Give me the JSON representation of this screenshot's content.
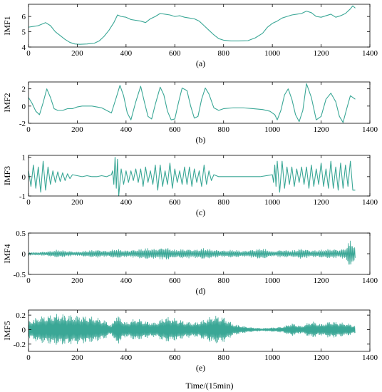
{
  "figure": {
    "xlabel": "Time/(15min)",
    "series_color": "#3aa796"
  },
  "chart_data": [
    {
      "type": "line",
      "ylabel": "IMF1",
      "caption": "(a)",
      "xlim": [
        0,
        1400
      ],
      "ylim": [
        4,
        6.8
      ],
      "xticks": [
        0,
        200,
        400,
        600,
        800,
        1000,
        1200,
        1400
      ],
      "yticks": [
        4,
        5,
        6
      ],
      "series": [
        {
          "x": [
            0,
            20,
            40,
            55,
            70,
            90,
            110,
            130,
            150,
            170,
            190,
            210,
            240,
            270,
            290,
            310,
            330,
            350,
            365,
            380,
            400,
            420,
            440,
            460,
            480,
            500,
            520,
            540,
            560,
            580,
            600,
            620,
            640,
            660,
            680,
            700,
            720,
            740,
            760,
            780,
            800,
            830,
            860,
            900,
            930,
            960,
            980,
            1000,
            1020,
            1040,
            1060,
            1080,
            1100,
            1120,
            1140,
            1160,
            1180,
            1200,
            1220,
            1240,
            1260,
            1280,
            1300,
            1320,
            1330,
            1340
          ],
          "y": [
            5.3,
            5.35,
            5.4,
            5.5,
            5.6,
            5.4,
            5.0,
            4.75,
            4.5,
            4.3,
            4.2,
            4.18,
            4.2,
            4.25,
            4.4,
            4.7,
            5.1,
            5.6,
            6.1,
            6.0,
            5.95,
            5.8,
            5.75,
            5.7,
            5.6,
            5.85,
            6.0,
            6.2,
            6.15,
            6.1,
            6.0,
            6.05,
            5.95,
            5.9,
            5.85,
            5.7,
            5.4,
            5.1,
            4.8,
            4.55,
            4.45,
            4.4,
            4.4,
            4.42,
            4.6,
            4.9,
            5.3,
            5.55,
            5.7,
            5.9,
            6.0,
            6.1,
            6.15,
            6.2,
            6.35,
            6.25,
            6.0,
            5.95,
            6.05,
            6.15,
            5.95,
            6.05,
            6.2,
            6.5,
            6.7,
            6.55
          ]
        }
      ]
    },
    {
      "type": "line",
      "ylabel": "IMF2",
      "caption": "(b)",
      "xlim": [
        0,
        1400
      ],
      "ylim": [
        -2,
        2.8
      ],
      "xticks": [
        0,
        200,
        400,
        600,
        800,
        1000,
        1200,
        1400
      ],
      "yticks": [
        -2,
        0,
        2
      ],
      "series": [
        {
          "x": [
            0,
            15,
            30,
            45,
            60,
            75,
            90,
            105,
            120,
            140,
            160,
            180,
            200,
            220,
            240,
            260,
            280,
            300,
            320,
            340,
            360,
            375,
            390,
            405,
            420,
            440,
            460,
            475,
            490,
            505,
            520,
            540,
            555,
            570,
            585,
            600,
            615,
            630,
            650,
            665,
            680,
            695,
            710,
            725,
            740,
            760,
            780,
            800,
            840,
            880,
            920,
            960,
            990,
            1010,
            1020,
            1035,
            1050,
            1065,
            1080,
            1095,
            1110,
            1125,
            1140,
            1160,
            1180,
            1200,
            1220,
            1240,
            1260,
            1275,
            1290,
            1305,
            1320,
            1340
          ],
          "y": [
            1.0,
            0.3,
            -0.6,
            -1.0,
            0.4,
            2.0,
            1.0,
            -0.3,
            -0.5,
            -0.5,
            -0.3,
            -0.3,
            -0.1,
            0.0,
            0.0,
            0.0,
            -0.1,
            -0.2,
            -0.5,
            -0.8,
            1.0,
            2.4,
            1.2,
            -0.8,
            -1.6,
            0.5,
            2.3,
            0.5,
            -1.2,
            -1.5,
            0.2,
            2.2,
            1.3,
            -0.6,
            -1.6,
            -1.5,
            0.4,
            2.1,
            1.8,
            0.0,
            -1.4,
            -1.2,
            0.8,
            2.1,
            1.4,
            -0.2,
            -0.5,
            -0.3,
            -0.2,
            -0.2,
            -0.3,
            -0.4,
            -0.6,
            -1.0,
            -1.6,
            -0.5,
            1.3,
            2.0,
            0.8,
            -1.0,
            -1.8,
            -0.5,
            2.6,
            1.0,
            -1.6,
            -1.2,
            0.8,
            1.5,
            0.5,
            -1.2,
            -1.9,
            -0.3,
            1.2,
            0.8
          ]
        }
      ]
    },
    {
      "type": "line",
      "ylabel": "IMF3",
      "caption": "(c)",
      "xlim": [
        0,
        1400
      ],
      "ylim": [
        -1,
        1.1
      ],
      "xticks": [
        0,
        200,
        400,
        600,
        800,
        1000,
        1200,
        1400
      ],
      "yticks": [
        -1,
        0,
        1
      ],
      "series": [
        {
          "x": [
            0,
            10,
            20,
            30,
            40,
            50,
            60,
            70,
            80,
            90,
            100,
            110,
            120,
            130,
            140,
            150,
            160,
            170,
            180,
            200,
            220,
            240,
            260,
            280,
            300,
            320,
            340,
            345,
            350,
            355,
            360,
            365,
            370,
            380,
            390,
            400,
            410,
            420,
            430,
            440,
            450,
            460,
            470,
            480,
            490,
            500,
            510,
            520,
            530,
            540,
            550,
            560,
            570,
            580,
            590,
            600,
            610,
            620,
            630,
            640,
            650,
            660,
            670,
            680,
            690,
            700,
            710,
            720,
            730,
            740,
            750,
            760,
            780,
            800,
            850,
            900,
            950,
            1000,
            1005,
            1010,
            1015,
            1020,
            1030,
            1040,
            1050,
            1060,
            1070,
            1080,
            1090,
            1100,
            1110,
            1120,
            1130,
            1140,
            1150,
            1160,
            1170,
            1180,
            1190,
            1200,
            1210,
            1220,
            1230,
            1240,
            1250,
            1260,
            1270,
            1280,
            1290,
            1300,
            1310,
            1320,
            1330,
            1340
          ],
          "y": [
            0.3,
            -0.5,
            0.6,
            -0.6,
            0.5,
            -0.8,
            0.8,
            -0.7,
            0.5,
            -0.4,
            0.3,
            -0.3,
            0.25,
            -0.25,
            0.2,
            -0.2,
            0.15,
            -0.1,
            0.1,
            0.05,
            0.0,
            0.05,
            0.0,
            0.0,
            0.05,
            0.0,
            0.1,
            0.3,
            -0.4,
            1.0,
            -0.6,
            0.9,
            -1.0,
            0.4,
            -0.4,
            0.3,
            -0.3,
            0.3,
            -0.2,
            0.4,
            -0.3,
            0.4,
            -0.5,
            0.5,
            -0.3,
            0.3,
            -0.4,
            0.6,
            -0.7,
            0.6,
            -0.5,
            0.3,
            -0.4,
            0.7,
            -0.6,
            0.4,
            -0.3,
            0.3,
            -0.4,
            0.5,
            -0.4,
            0.5,
            -0.5,
            0.4,
            -0.3,
            0.3,
            -0.5,
            0.6,
            -0.4,
            0.3,
            -0.2,
            0.1,
            0.0,
            0.0,
            0.0,
            0.0,
            0.0,
            0.1,
            -0.3,
            0.6,
            -0.5,
            0.8,
            -0.8,
            0.8,
            -0.6,
            0.5,
            -0.4,
            0.5,
            -0.5,
            0.4,
            -0.3,
            0.5,
            -0.4,
            0.5,
            -0.6,
            0.6,
            -0.5,
            0.4,
            -0.4,
            0.7,
            -0.5,
            0.4,
            -0.6,
            0.8,
            -0.6,
            0.5,
            -0.7,
            0.7,
            -0.6,
            0.6,
            -0.5,
            0.8,
            -0.7,
            -0.7
          ]
        }
      ]
    },
    {
      "type": "line",
      "ylabel": "IMF4",
      "caption": "(d)",
      "xlim": [
        0,
        1400
      ],
      "ylim": [
        -0.5,
        0.5
      ],
      "xticks": [
        0,
        200,
        400,
        600,
        800,
        1000,
        1200,
        1400
      ],
      "yticks": [
        -0.5,
        0,
        0.5
      ],
      "series": [
        {
          "x": [
            0,
            40,
            80,
            120,
            160,
            200,
            240,
            280,
            320,
            360,
            400,
            440,
            480,
            520,
            560,
            600,
            640,
            680,
            720,
            760,
            800,
            840,
            880,
            920,
            960,
            1000,
            1040,
            1080,
            1120,
            1160,
            1200,
            1240,
            1280,
            1300,
            1320,
            1330,
            1340
          ],
          "y": [
            0.03,
            0.04,
            0.06,
            0.1,
            0.07,
            0.05,
            0.08,
            0.1,
            0.07,
            0.12,
            0.08,
            0.1,
            0.14,
            0.12,
            0.16,
            0.1,
            0.12,
            0.1,
            0.14,
            0.1,
            0.08,
            0.1,
            0.07,
            0.1,
            0.14,
            0.06,
            0.1,
            0.08,
            0.13,
            0.08,
            0.1,
            0.12,
            0.1,
            0.15,
            0.35,
            0.3,
            0.12
          ]
        }
      ]
    },
    {
      "type": "line",
      "ylabel": "IMF5",
      "caption": "(e)",
      "xlim": [
        0,
        1400
      ],
      "ylim": [
        -0.3,
        0.27
      ],
      "xticks": [
        0,
        200,
        400,
        600,
        800,
        1000,
        1200,
        1400
      ],
      "yticks": [
        -0.2,
        0,
        0.2
      ],
      "series": [
        {
          "x": [
            0,
            40,
            80,
            120,
            160,
            200,
            240,
            280,
            320,
            340,
            360,
            400,
            440,
            480,
            520,
            560,
            600,
            640,
            680,
            720,
            760,
            800,
            840,
            880,
            920,
            960,
            1000,
            1040,
            1080,
            1120,
            1160,
            1200,
            1240,
            1280,
            1320,
            1340
          ],
          "y": [
            0.12,
            0.18,
            0.2,
            0.22,
            0.21,
            0.2,
            0.19,
            0.17,
            0.12,
            0.06,
            0.22,
            0.1,
            0.16,
            0.12,
            0.1,
            0.18,
            0.16,
            0.12,
            0.1,
            0.14,
            0.2,
            0.18,
            0.08,
            0.05,
            0.03,
            0.02,
            0.03,
            0.04,
            0.09,
            0.05,
            0.12,
            0.08,
            0.12,
            0.1,
            0.08,
            0.05
          ]
        }
      ]
    }
  ]
}
